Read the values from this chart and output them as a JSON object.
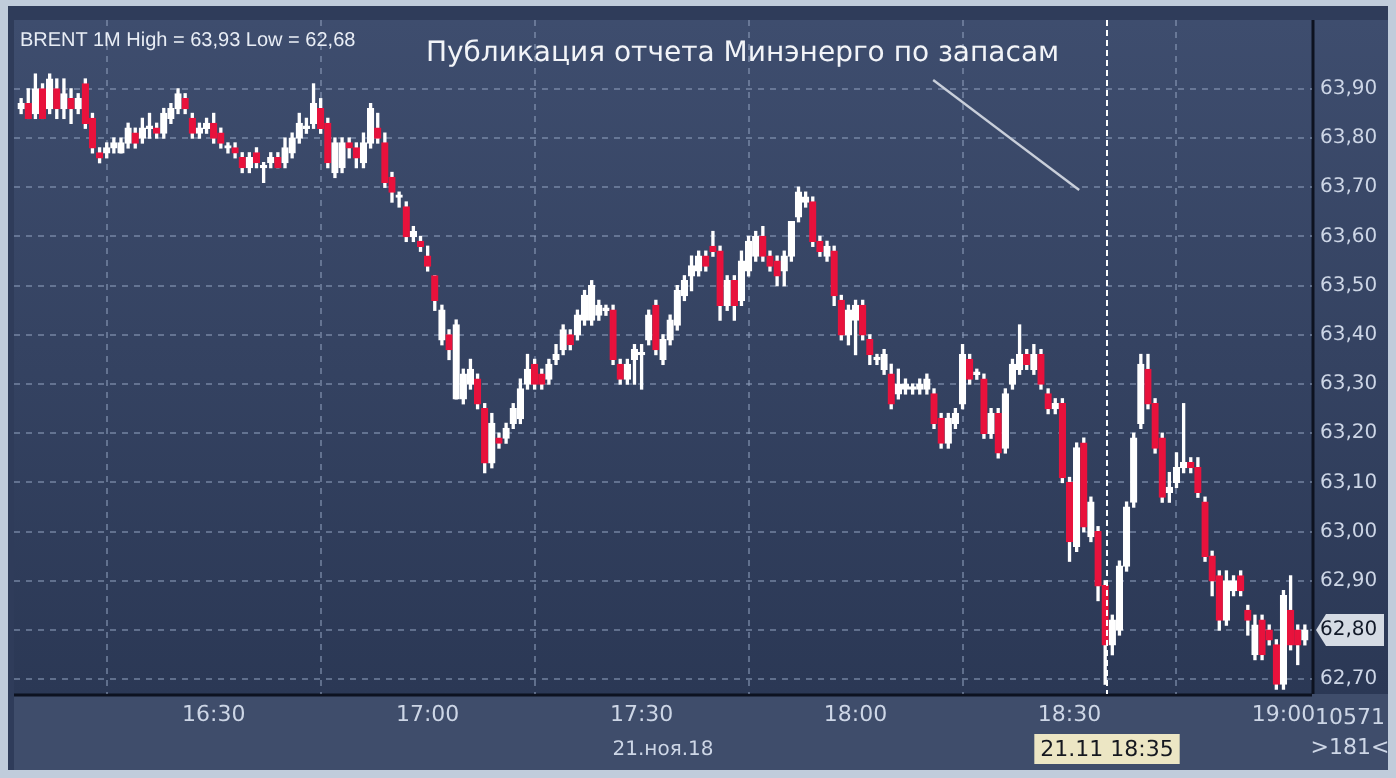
{
  "chart_data": {
    "type": "candlestick",
    "title": "BRENT 1M High = 63,93 Low = 62,68",
    "xlabel": "21.ноя.18",
    "x": [
      "--11-21T16:03",
      "--11-21T16:04",
      "--11-21T16:05",
      "--11-21T16:06",
      "--11-21T16:07",
      "--11-21T16:08",
      "--11-21T16:09",
      "--11-21T16:10",
      "--11-21T16:11",
      "--11-21T16:12",
      "--11-21T16:13",
      "--11-21T16:14",
      "--11-21T16:15",
      "--11-21T16:16",
      "--11-21T16:17",
      "--11-21T16:18",
      "--11-21T16:19",
      "--11-21T16:20",
      "--11-21T16:21",
      "--11-21T16:22",
      "--11-21T16:23",
      "--11-21T16:24",
      "--11-21T16:25",
      "--11-21T16:26",
      "--11-21T16:27",
      "--11-21T16:28",
      "--11-21T16:29",
      "--11-21T16:30",
      "--11-21T16:31",
      "--11-21T16:32",
      "--11-21T16:33",
      "--11-21T16:34",
      "--11-21T16:35",
      "--11-21T16:36",
      "--11-21T16:37",
      "--11-21T16:38",
      "--11-21T16:39",
      "--11-21T16:40",
      "--11-21T16:41",
      "--11-21T16:42",
      "--11-21T16:43",
      "--11-21T16:44",
      "--11-21T16:45",
      "--11-21T16:46",
      "--11-21T16:47",
      "--11-21T16:48",
      "--11-21T16:49",
      "--11-21T16:50",
      "--11-21T16:51",
      "--11-21T16:52",
      "--11-21T16:53",
      "--11-21T16:54",
      "--11-21T16:55",
      "--11-21T16:56",
      "--11-21T16:57",
      "--11-21T16:58",
      "--11-21T16:59",
      "--11-21T17:00",
      "--11-21T17:01",
      "--11-21T17:02",
      "--11-21T17:03",
      "--11-21T17:04",
      "--11-21T17:05",
      "--11-21T17:06",
      "--11-21T17:07",
      "--11-21T17:08",
      "--11-21T17:09",
      "--11-21T17:10",
      "--11-21T17:11",
      "--11-21T17:12",
      "--11-21T17:13",
      "--11-21T17:14",
      "--11-21T17:15",
      "--11-21T17:16",
      "--11-21T17:17",
      "--11-21T17:18",
      "--11-21T17:19",
      "--11-21T17:20",
      "--11-21T17:21",
      "--11-21T17:22",
      "--11-21T17:23",
      "--11-21T17:24",
      "--11-21T17:25",
      "--11-21T17:26",
      "--11-21T17:27",
      "--11-21T17:28",
      "--11-21T17:29",
      "--11-21T17:30",
      "--11-21T17:31",
      "--11-21T17:32",
      "--11-21T17:33",
      "--11-21T17:34",
      "--11-21T17:35",
      "--11-21T17:36",
      "--11-21T17:37",
      "--11-21T17:38",
      "--11-21T17:39",
      "--11-21T17:40",
      "--11-21T17:41",
      "--11-21T17:42",
      "--11-21T17:43",
      "--11-21T17:44",
      "--11-21T17:45",
      "--11-21T17:46",
      "--11-21T17:47",
      "--11-21T17:48",
      "--11-21T17:49",
      "--11-21T17:50",
      "--11-21T17:51",
      "--11-21T17:52",
      "--11-21T17:53",
      "--11-21T17:54",
      "--11-21T17:55",
      "--11-21T17:56",
      "--11-21T17:57",
      "--11-21T17:58",
      "--11-21T17:59",
      "--11-21T18:00",
      "--11-21T18:01",
      "--11-21T18:02",
      "--11-21T18:03",
      "--11-21T18:04",
      "--11-21T18:05",
      "--11-21T18:06",
      "--11-21T18:07",
      "--11-21T18:08",
      "--11-21T18:09",
      "--11-21T18:10",
      "--11-21T18:11",
      "--11-21T18:12",
      "--11-21T18:13",
      "--11-21T18:14",
      "--11-21T18:15",
      "--11-21T18:16",
      "--11-21T18:17",
      "--11-21T18:18",
      "--11-21T18:19",
      "--11-21T18:20",
      "--11-21T18:21",
      "--11-21T18:22",
      "--11-21T18:23",
      "--11-21T18:24",
      "--11-21T18:25",
      "--11-21T18:26",
      "--11-21T18:27",
      "--11-21T18:28",
      "--11-21T18:29",
      "--11-21T18:30",
      "--11-21T18:31",
      "--11-21T18:32",
      "--11-21T18:33",
      "--11-21T18:34",
      "--11-21T18:35",
      "--11-21T18:36",
      "--11-21T18:37",
      "--11-21T18:38",
      "--11-21T18:39",
      "--11-21T18:40",
      "--11-21T18:41",
      "--11-21T18:42",
      "--11-21T18:43",
      "--11-21T18:44",
      "--11-21T18:45",
      "--11-21T18:46",
      "--11-21T18:47",
      "--11-21T18:48",
      "--11-21T18:49",
      "--11-21T18:50",
      "--11-21T18:51",
      "--11-21T18:52",
      "--11-21T18:53",
      "--11-21T18:54",
      "--11-21T18:55",
      "--11-21T18:56",
      "--11-21T18:57",
      "--11-21T18:58",
      "--11-21T18:59",
      "--11-21T19:00",
      "--11-21T19:01",
      "--11-21T19:02",
      "--11-21T19:03"
    ],
    "ohlc": [
      [
        63.86,
        63.88,
        63.85,
        63.87
      ],
      [
        63.87,
        63.9,
        63.84,
        63.84
      ],
      [
        63.85,
        63.93,
        63.84,
        63.9
      ],
      [
        63.9,
        63.91,
        63.84,
        63.84
      ],
      [
        63.86,
        63.93,
        63.85,
        63.92
      ],
      [
        63.9,
        63.92,
        63.84,
        63.86
      ],
      [
        63.86,
        63.92,
        63.84,
        63.89
      ],
      [
        63.88,
        63.9,
        63.83,
        63.86
      ],
      [
        63.86,
        63.89,
        63.85,
        63.88
      ],
      [
        63.91,
        63.92,
        63.82,
        63.83
      ],
      [
        63.84,
        63.85,
        63.77,
        63.78
      ],
      [
        63.77,
        63.78,
        63.75,
        63.76
      ],
      [
        63.77,
        63.79,
        63.76,
        63.78
      ],
      [
        63.78,
        63.8,
        63.77,
        63.79
      ],
      [
        63.77,
        63.8,
        63.77,
        63.79
      ],
      [
        63.79,
        63.83,
        63.78,
        63.82
      ],
      [
        63.81,
        63.82,
        63.78,
        63.79
      ],
      [
        63.8,
        63.84,
        63.79,
        63.82
      ],
      [
        63.82,
        63.85,
        63.8,
        63.82
      ],
      [
        63.82,
        63.83,
        63.8,
        63.81
      ],
      [
        63.81,
        63.86,
        63.8,
        63.85
      ],
      [
        63.84,
        63.87,
        63.83,
        63.86
      ],
      [
        63.86,
        63.9,
        63.85,
        63.89
      ],
      [
        63.88,
        63.89,
        63.85,
        63.86
      ],
      [
        63.84,
        63.85,
        63.8,
        63.81
      ],
      [
        63.81,
        63.83,
        63.8,
        63.82
      ],
      [
        63.82,
        63.84,
        63.81,
        63.83
      ],
      [
        63.83,
        63.85,
        63.79,
        63.8
      ],
      [
        63.81,
        63.82,
        63.78,
        63.79
      ],
      [
        63.78,
        63.79,
        63.77,
        63.78
      ],
      [
        63.78,
        63.79,
        63.76,
        63.77
      ],
      [
        63.76,
        63.77,
        63.73,
        63.74
      ],
      [
        63.74,
        63.77,
        63.73,
        63.76
      ],
      [
        63.77,
        63.78,
        63.74,
        63.75
      ],
      [
        63.74,
        63.75,
        63.71,
        63.74
      ],
      [
        63.75,
        63.77,
        63.74,
        63.76
      ],
      [
        63.76,
        63.77,
        63.74,
        63.74
      ],
      [
        63.75,
        63.8,
        63.74,
        63.78
      ],
      [
        63.77,
        63.81,
        63.76,
        63.8
      ],
      [
        63.8,
        63.85,
        63.79,
        63.83
      ],
      [
        63.82,
        63.84,
        63.81,
        63.82
      ],
      [
        63.83,
        63.91,
        63.82,
        63.87
      ],
      [
        63.86,
        63.88,
        63.81,
        63.82
      ],
      [
        63.83,
        63.84,
        63.74,
        63.75
      ],
      [
        63.73,
        63.8,
        63.72,
        63.79
      ],
      [
        63.74,
        63.8,
        63.73,
        63.79
      ],
      [
        63.79,
        63.8,
        63.76,
        63.78
      ],
      [
        63.78,
        63.79,
        63.74,
        63.76
      ],
      [
        63.75,
        63.81,
        63.74,
        63.79
      ],
      [
        63.79,
        63.87,
        63.78,
        63.86
      ],
      [
        63.82,
        63.85,
        63.79,
        63.8
      ],
      [
        63.79,
        63.81,
        63.7,
        63.71
      ],
      [
        63.72,
        63.73,
        63.67,
        63.69
      ],
      [
        63.68,
        63.69,
        63.66,
        63.68
      ],
      [
        63.66,
        63.67,
        63.59,
        63.6
      ],
      [
        63.6,
        63.62,
        63.59,
        63.61
      ],
      [
        63.59,
        63.6,
        63.57,
        63.58
      ],
      [
        63.56,
        63.58,
        63.53,
        63.54
      ],
      [
        63.52,
        63.52,
        63.45,
        63.47
      ],
      [
        63.39,
        63.46,
        63.38,
        63.45
      ],
      [
        63.4,
        63.41,
        63.35,
        63.37
      ],
      [
        63.27,
        63.43,
        63.27,
        63.42
      ],
      [
        63.27,
        63.33,
        63.26,
        63.32
      ],
      [
        63.3,
        63.35,
        63.29,
        63.33
      ],
      [
        63.31,
        63.32,
        63.25,
        63.26
      ],
      [
        63.25,
        63.26,
        63.12,
        63.14
      ],
      [
        63.14,
        63.24,
        63.13,
        63.22
      ],
      [
        63.19,
        63.2,
        63.17,
        63.18
      ],
      [
        63.19,
        63.22,
        63.18,
        63.21
      ],
      [
        63.22,
        63.26,
        63.21,
        63.25
      ],
      [
        63.23,
        63.31,
        63.22,
        63.29
      ],
      [
        63.3,
        63.36,
        63.29,
        63.33
      ],
      [
        63.34,
        63.35,
        63.29,
        63.3
      ],
      [
        63.32,
        63.33,
        63.29,
        63.3
      ],
      [
        63.31,
        63.35,
        63.3,
        63.34
      ],
      [
        63.35,
        63.38,
        63.34,
        63.36
      ],
      [
        63.37,
        63.42,
        63.36,
        63.41
      ],
      [
        63.4,
        63.41,
        63.37,
        63.38
      ],
      [
        63.4,
        63.45,
        63.39,
        63.44
      ],
      [
        63.43,
        63.49,
        63.42,
        63.48
      ],
      [
        63.43,
        63.51,
        63.42,
        63.5
      ],
      [
        63.44,
        63.47,
        63.43,
        63.46
      ],
      [
        63.45,
        63.46,
        63.44,
        63.45
      ],
      [
        63.45,
        63.46,
        63.34,
        63.35
      ],
      [
        63.34,
        63.35,
        63.3,
        63.31
      ],
      [
        63.31,
        63.35,
        63.3,
        63.34
      ],
      [
        63.35,
        63.38,
        63.3,
        63.37
      ],
      [
        63.36,
        63.38,
        63.29,
        63.36
      ],
      [
        63.39,
        63.45,
        63.38,
        63.44
      ],
      [
        63.46,
        63.47,
        63.36,
        63.37
      ],
      [
        63.35,
        63.4,
        63.34,
        63.39
      ],
      [
        63.39,
        63.44,
        63.38,
        63.43
      ],
      [
        63.42,
        63.5,
        63.41,
        63.49
      ],
      [
        63.48,
        63.52,
        63.47,
        63.51
      ],
      [
        63.52,
        63.56,
        63.49,
        63.54
      ],
      [
        63.53,
        63.57,
        63.52,
        63.56
      ],
      [
        63.56,
        63.57,
        63.53,
        63.54
      ],
      [
        63.58,
        63.61,
        63.56,
        63.57
      ],
      [
        63.57,
        63.58,
        63.43,
        63.46
      ],
      [
        63.46,
        63.52,
        63.45,
        63.51
      ],
      [
        63.51,
        63.52,
        63.43,
        63.46
      ],
      [
        63.47,
        63.57,
        63.46,
        63.55
      ],
      [
        63.53,
        63.6,
        63.52,
        63.59
      ],
      [
        63.56,
        63.61,
        63.55,
        63.6
      ],
      [
        63.6,
        63.62,
        63.55,
        63.56
      ],
      [
        63.56,
        63.57,
        63.53,
        63.54
      ],
      [
        63.55,
        63.56,
        63.5,
        63.52
      ],
      [
        63.53,
        63.57,
        63.5,
        63.56
      ],
      [
        63.56,
        63.63,
        63.55,
        63.63
      ],
      [
        63.64,
        63.7,
        63.63,
        63.69
      ],
      [
        63.67,
        63.69,
        63.66,
        63.68
      ],
      [
        63.67,
        63.68,
        63.58,
        63.59
      ],
      [
        63.59,
        63.6,
        63.56,
        63.57
      ],
      [
        63.56,
        63.59,
        63.55,
        63.58
      ],
      [
        63.57,
        63.58,
        63.46,
        63.48
      ],
      [
        63.47,
        63.48,
        63.39,
        63.4
      ],
      [
        63.4,
        63.46,
        63.38,
        63.45
      ],
      [
        63.43,
        63.47,
        63.36,
        63.46
      ],
      [
        63.46,
        63.47,
        63.39,
        63.4
      ],
      [
        63.39,
        63.4,
        63.34,
        63.36
      ],
      [
        63.35,
        63.36,
        63.34,
        63.35
      ],
      [
        63.33,
        63.37,
        63.32,
        63.36
      ],
      [
        63.32,
        63.34,
        63.25,
        63.26
      ],
      [
        63.28,
        63.33,
        63.27,
        63.3
      ],
      [
        63.29,
        63.31,
        63.28,
        63.3
      ],
      [
        63.29,
        63.3,
        63.28,
        63.29
      ],
      [
        63.29,
        63.31,
        63.28,
        63.3
      ],
      [
        63.29,
        63.32,
        63.28,
        63.31
      ],
      [
        63.28,
        63.29,
        63.21,
        63.22
      ],
      [
        63.23,
        63.24,
        63.17,
        63.18
      ],
      [
        63.18,
        63.24,
        63.17,
        63.23
      ],
      [
        63.22,
        63.25,
        63.21,
        63.24
      ],
      [
        63.26,
        63.38,
        63.25,
        63.36
      ],
      [
        63.35,
        63.36,
        63.3,
        63.31
      ],
      [
        63.32,
        63.33,
        63.31,
        63.32
      ],
      [
        63.31,
        63.32,
        63.19,
        63.2
      ],
      [
        63.2,
        63.25,
        63.19,
        63.24
      ],
      [
        63.24,
        63.25,
        63.15,
        63.16
      ],
      [
        63.17,
        63.29,
        63.16,
        63.28
      ],
      [
        63.3,
        63.35,
        63.29,
        63.34
      ],
      [
        63.33,
        63.42,
        63.32,
        63.36
      ],
      [
        63.36,
        63.37,
        63.33,
        63.34
      ],
      [
        63.33,
        63.38,
        63.32,
        63.36
      ],
      [
        63.36,
        63.37,
        63.29,
        63.3
      ],
      [
        63.28,
        63.29,
        63.24,
        63.25
      ],
      [
        63.25,
        63.27,
        63.24,
        63.26
      ],
      [
        63.26,
        63.27,
        63.1,
        63.11
      ],
      [
        63.1,
        63.11,
        62.94,
        62.98
      ],
      [
        62.97,
        63.18,
        62.96,
        63.17
      ],
      [
        63.18,
        63.19,
        63.0,
        63.01
      ],
      [
        62.99,
        63.07,
        62.98,
        63.06
      ],
      [
        63.0,
        63.01,
        62.86,
        62.89
      ],
      [
        62.89,
        62.9,
        62.69,
        62.77
      ],
      [
        62.77,
        62.83,
        62.75,
        62.82
      ],
      [
        62.8,
        62.94,
        62.79,
        62.93
      ],
      [
        62.93,
        63.06,
        62.92,
        63.05
      ],
      [
        63.06,
        63.2,
        63.05,
        63.19
      ],
      [
        63.22,
        63.36,
        63.21,
        63.34
      ],
      [
        63.33,
        63.36,
        63.25,
        63.26
      ],
      [
        63.26,
        63.27,
        63.16,
        63.17
      ],
      [
        63.19,
        63.2,
        63.06,
        63.07
      ],
      [
        63.08,
        63.12,
        63.06,
        63.09
      ],
      [
        63.1,
        63.16,
        63.09,
        63.13
      ],
      [
        63.13,
        63.26,
        63.12,
        63.14
      ],
      [
        63.14,
        63.15,
        63.12,
        63.13
      ],
      [
        63.13,
        63.15,
        63.07,
        63.08
      ],
      [
        63.06,
        63.07,
        62.94,
        62.95
      ],
      [
        62.95,
        62.96,
        62.87,
        62.9
      ],
      [
        62.91,
        62.92,
        62.8,
        62.82
      ],
      [
        62.82,
        62.92,
        62.81,
        62.9
      ],
      [
        62.88,
        62.91,
        62.87,
        62.9
      ],
      [
        62.91,
        62.92,
        62.87,
        62.88
      ],
      [
        62.84,
        62.85,
        62.79,
        62.82
      ],
      [
        62.75,
        62.83,
        62.74,
        62.81
      ],
      [
        62.82,
        62.83,
        62.74,
        62.75
      ],
      [
        62.8,
        62.81,
        62.77,
        62.78
      ],
      [
        62.77,
        62.78,
        62.68,
        62.69
      ],
      [
        62.69,
        62.88,
        62.68,
        62.87
      ],
      [
        62.84,
        62.91,
        62.76,
        62.77
      ],
      [
        62.8,
        62.81,
        62.73,
        62.77
      ],
      [
        62.78,
        62.81,
        62.77,
        62.8
      ]
    ],
    "xlim": [
      "--11-21T16:02",
      "--11-21T19:04"
    ],
    "xticks": [
      {
        "value": "--11-21T16:30",
        "label": "16:30"
      },
      {
        "value": "--11-21T17:00",
        "label": "17:00"
      },
      {
        "value": "--11-21T17:30",
        "label": "17:30"
      },
      {
        "value": "--11-21T18:00",
        "label": "18:00"
      },
      {
        "value": "--11-21T18:30",
        "label": "18:30"
      },
      {
        "value": "--11-21T19:00",
        "label": "19:00"
      }
    ],
    "ylim": [
      62.67,
      64.04
    ],
    "yticks": [
      {
        "value": 62.7,
        "label": "62,70"
      },
      {
        "value": 62.8,
        "label": "62,80"
      },
      {
        "value": 62.9,
        "label": "62,90"
      },
      {
        "value": 63.0,
        "label": "63,00"
      },
      {
        "value": 63.1,
        "label": "63,10"
      },
      {
        "value": 63.2,
        "label": "63,20"
      },
      {
        "value": 63.3,
        "label": "63,30"
      },
      {
        "value": 63.4,
        "label": "63,40"
      },
      {
        "value": 63.5,
        "label": "63,50"
      },
      {
        "value": 63.6,
        "label": "63,60"
      },
      {
        "value": 63.7,
        "label": "63,70"
      },
      {
        "value": 63.8,
        "label": "63,80"
      },
      {
        "value": 63.9,
        "label": "63,90"
      }
    ],
    "grid": true,
    "ref_lines": [
      {
        "axis": "x",
        "value": "--11-21T18:35",
        "label": "21.11 18:35",
        "line_style": "dashed"
      }
    ],
    "annotations": [
      "Публикация отчета Минэнерго по запасам",
      "10571",
      ">181<"
    ]
  }
}
